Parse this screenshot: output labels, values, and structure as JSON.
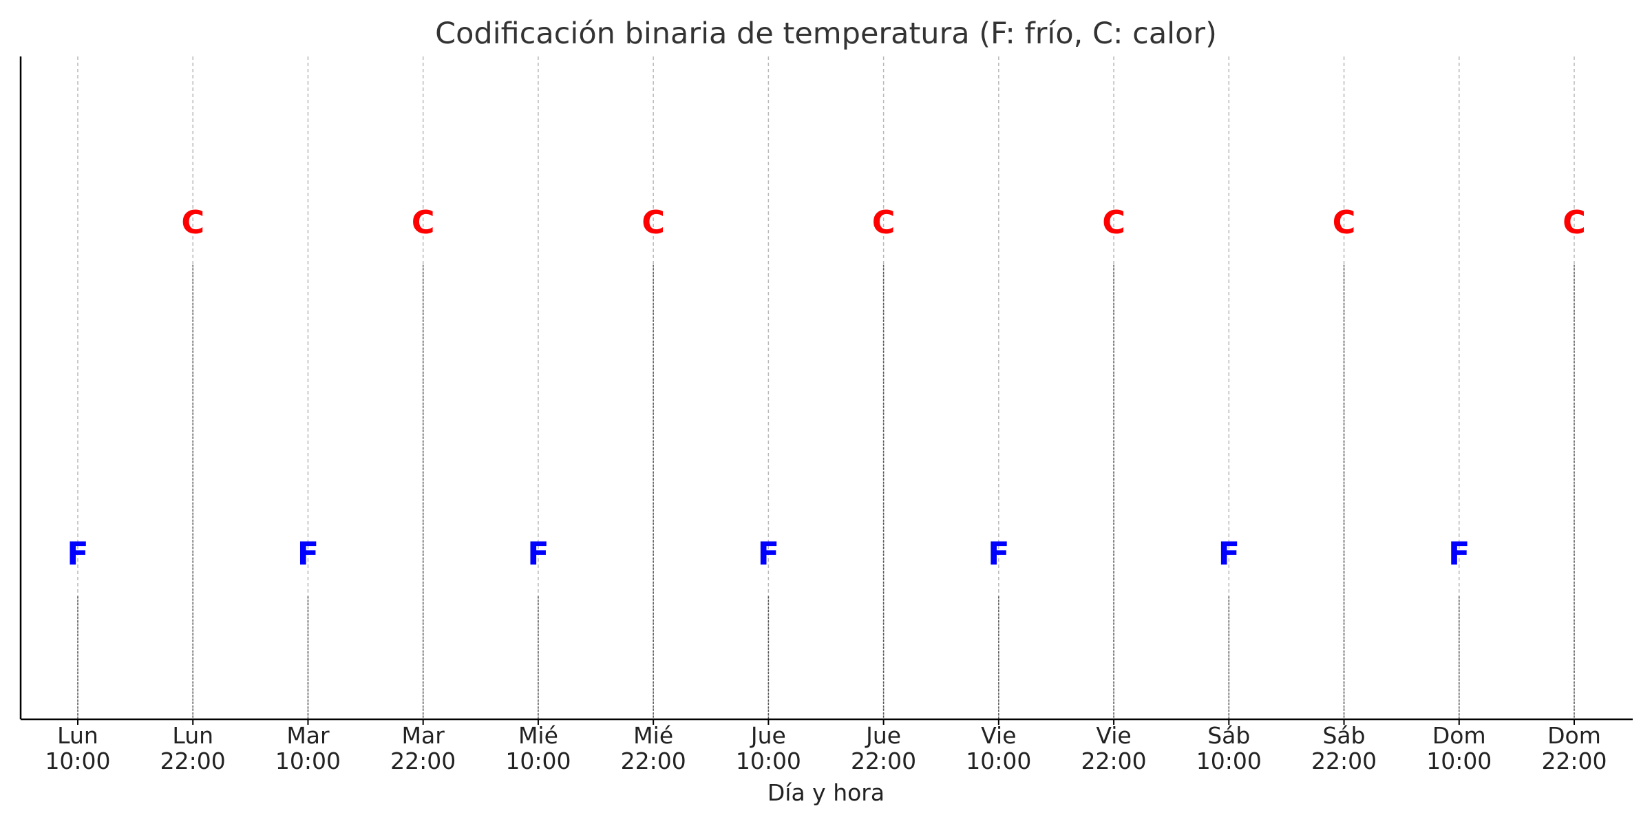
{
  "chart_data": {
    "type": "scatter",
    "title": "Codificación binaria de temperatura (F: frío, C: calor)",
    "xlabel": "Día y hora",
    "ylabel": "",
    "grid": "x-only (dashed)",
    "ylim": [
      -0.5,
      1.5
    ],
    "colors": {
      "F": "#0000ff",
      "C": "#ff0000"
    },
    "x": [
      [
        "Lun",
        "10:00"
      ],
      [
        "Lun",
        "22:00"
      ],
      [
        "Mar",
        "10:00"
      ],
      [
        "Mar",
        "22:00"
      ],
      [
        "Mié",
        "10:00"
      ],
      [
        "Mié",
        "22:00"
      ],
      [
        "Jue",
        "10:00"
      ],
      [
        "Jue",
        "22:00"
      ],
      [
        "Vie",
        "10:00"
      ],
      [
        "Vie",
        "22:00"
      ],
      [
        "Sáb",
        "10:00"
      ],
      [
        "Sáb",
        "22:00"
      ],
      [
        "Dom",
        "10:00"
      ],
      [
        "Dom",
        "22:00"
      ]
    ],
    "values": [
      0,
      1,
      0,
      1,
      0,
      1,
      0,
      1,
      0,
      1,
      0,
      1,
      0,
      1
    ],
    "labels": [
      "F",
      "C",
      "F",
      "C",
      "F",
      "C",
      "F",
      "C",
      "F",
      "C",
      "F",
      "C",
      "F",
      "C"
    ]
  }
}
